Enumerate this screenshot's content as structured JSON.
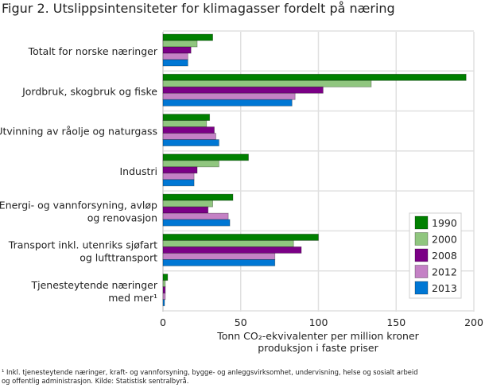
{
  "chart_data": {
    "type": "bar",
    "orientation": "horizontal",
    "title": "Figur 2. Utslippsintensiteter for klimagasser fordelt på næring",
    "xlabel_lines": [
      "Tonn CO₂-ekvivalenter per million kroner",
      "produksjon i faste priser"
    ],
    "xlim": [
      0,
      200
    ],
    "xticks": [
      "0",
      "50",
      "100",
      "150",
      "200"
    ],
    "grid": true,
    "legend_position": "bottom-right",
    "categories": [
      [
        "Totalt for norske næringer"
      ],
      [
        "Jordbruk, skogbruk og fiske"
      ],
      [
        "Utvinning av råolje og naturgass"
      ],
      [
        "Industri"
      ],
      [
        "Energi- og vannforsyning, avløp",
        "og renovasjon"
      ],
      [
        "Transport inkl. utenriks sjøfart",
        "og lufttransport"
      ],
      [
        "Tjenesteytende næringer",
        "med mer¹"
      ]
    ],
    "series": [
      {
        "name": "1990",
        "color": "#008000",
        "values": [
          32,
          195,
          30,
          55,
          45,
          100,
          3
        ]
      },
      {
        "name": "2000",
        "color": "#90c67f",
        "values": [
          22,
          134,
          28,
          36,
          32,
          84,
          1.5
        ]
      },
      {
        "name": "2008",
        "color": "#7b0086",
        "values": [
          18,
          103,
          33,
          22,
          29,
          89,
          1.5
        ]
      },
      {
        "name": "2012",
        "color": "#c481c5",
        "values": [
          16,
          85,
          34,
          20,
          42,
          72,
          1.5
        ]
      },
      {
        "name": "2013",
        "color": "#0077d4",
        "values": [
          16,
          83,
          36,
          20,
          43,
          72,
          1
        ]
      }
    ]
  },
  "footnote_lines": [
    "¹ Inkl. tjenesteytende næringer, kraft- og vannforsyning, bygge- og anleggsvirksomhet, undervisning, helse og sosialt arbeid",
    "og offentlig administrasjon. Kilde: Statistisk sentralbyrå."
  ]
}
